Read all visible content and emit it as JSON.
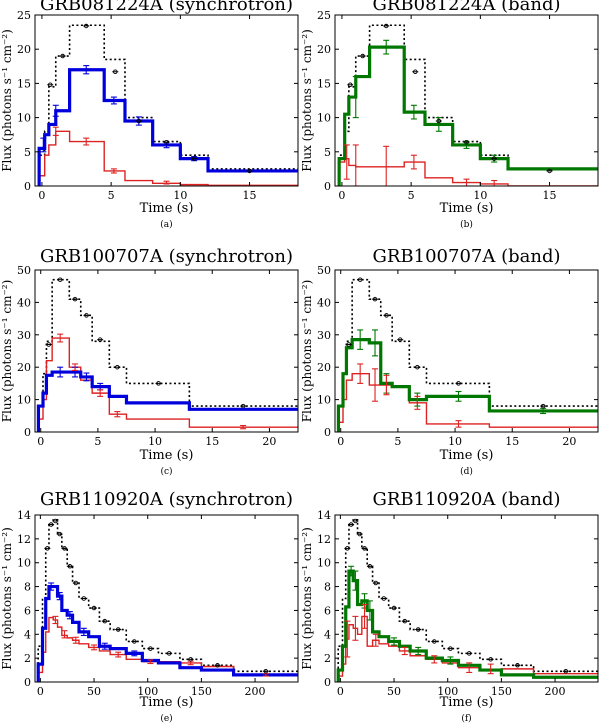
{
  "colors": {
    "data": "#000000",
    "total": "#0000dd",
    "band": "#007700",
    "extra": "#dd2222"
  },
  "chart_data": [
    {
      "type": "line",
      "label": "(a)",
      "title": "GRB081224A (synchrotron)",
      "xlabel": "Time (s)",
      "ylabel": "Flux (photons s⁻¹ cm⁻²)",
      "xlim": [
        -0.5,
        18.5
      ],
      "ylim": [
        0,
        25
      ],
      "xticks": [
        0,
        5,
        10,
        15
      ],
      "yticks": [
        0,
        5,
        10,
        15,
        20,
        25
      ],
      "xtick_labels": [
        "0",
        "5",
        "10",
        "15"
      ],
      "ytick_labels": [
        "0",
        "5",
        "10",
        "15",
        "20",
        "25"
      ],
      "edges": [
        -0.2,
        0.2,
        0.5,
        1.0,
        2.0,
        4.5,
        6.0,
        8.0,
        10.0,
        12.0,
        18.5
      ],
      "data_line": [
        4.5,
        8.0,
        14.5,
        19.0,
        23.5,
        18.5,
        10.0,
        6.5,
        4.5,
        2.5
      ],
      "total": [
        5.5,
        7.5,
        9.0,
        11.0,
        17.0,
        12.5,
        9.5,
        6.0,
        4.0,
        2.2
      ],
      "component": [
        1.5,
        4.5,
        6.0,
        8.0,
        6.5,
        2.2,
        0.8,
        0.4,
        0.2,
        0.1
      ],
      "data_points": {
        "x": [
          0.6,
          1.5,
          3.2,
          5.3,
          7.0,
          9.0,
          11.0,
          15.0
        ],
        "y": [
          14.8,
          19.0,
          23.4,
          16.7,
          9.5,
          6.4,
          4.0,
          2.2
        ]
      },
      "total_err": [
        {
          "x": 0.1,
          "y": 6.0,
          "e": 1.0
        },
        {
          "x": 1.0,
          "y": 11.0,
          "e": 0.8
        },
        {
          "x": 3.2,
          "y": 17.0,
          "e": 0.6
        },
        {
          "x": 5.2,
          "y": 12.5,
          "e": 0.5
        },
        {
          "x": 7.0,
          "y": 9.5,
          "e": 0.6
        },
        {
          "x": 9.0,
          "y": 6.0,
          "e": 0.4
        },
        {
          "x": 11.0,
          "y": 4.0,
          "e": 0.3
        }
      ],
      "comp_err": [
        {
          "x": 1.0,
          "y": 8.0,
          "e": 0.6
        },
        {
          "x": 3.2,
          "y": 6.5,
          "e": 0.5
        },
        {
          "x": 5.2,
          "y": 2.2,
          "e": 0.3
        },
        {
          "x": 9.0,
          "y": 0.5,
          "e": 0.2
        }
      ]
    },
    {
      "type": "line",
      "label": "(b)",
      "title": "GRB081224A (band)",
      "xlabel": "Time (s)",
      "ylabel": "Flux (photons s⁻¹ cm⁻²)",
      "xlim": [
        -0.5,
        18.5
      ],
      "ylim": [
        0,
        25
      ],
      "xticks": [
        0,
        5,
        10,
        15
      ],
      "yticks": [
        0,
        5,
        10,
        15,
        20,
        25
      ],
      "xtick_labels": [
        "0",
        "5",
        "10",
        "15"
      ],
      "ytick_labels": [
        "0",
        "5",
        "10",
        "15",
        "20",
        "25"
      ],
      "edges": [
        -0.2,
        0.2,
        0.5,
        1.0,
        2.0,
        4.5,
        6.0,
        8.0,
        10.0,
        12.0,
        18.5
      ],
      "data_line": [
        4.5,
        8.0,
        14.5,
        19.0,
        23.5,
        18.5,
        10.0,
        6.5,
        4.5,
        2.5
      ],
      "total": [
        4.0,
        10.5,
        13.0,
        16.0,
        20.3,
        10.8,
        9.0,
        6.0,
        4.0,
        2.5
      ],
      "component": [
        3.5,
        4.0,
        3.0,
        2.8,
        2.8,
        3.5,
        1.2,
        0.5,
        0.3,
        0.0
      ],
      "data_points": {
        "x": [
          0.6,
          1.5,
          3.2,
          5.3,
          7.0,
          9.0,
          11.0,
          15.0
        ],
        "y": [
          14.8,
          19.0,
          23.4,
          16.7,
          9.5,
          6.4,
          4.0,
          2.2
        ]
      },
      "total_err": [
        {
          "x": 1.0,
          "y": 13.0,
          "e": 3.0
        },
        {
          "x": 3.2,
          "y": 20.3,
          "e": 1.0
        },
        {
          "x": 5.2,
          "y": 10.8,
          "e": 1.0
        },
        {
          "x": 7.0,
          "y": 9.0,
          "e": 1.0
        },
        {
          "x": 9.0,
          "y": 6.0,
          "e": 0.5
        },
        {
          "x": 11.0,
          "y": 4.0,
          "e": 0.5
        }
      ],
      "comp_err": [
        {
          "x": 0.35,
          "y": 3.5,
          "e": 2.5
        },
        {
          "x": 1.0,
          "y": 3.0,
          "e": 3.0
        },
        {
          "x": 3.2,
          "y": 2.8,
          "e": 3.0
        },
        {
          "x": 5.2,
          "y": 3.5,
          "e": 1.0
        },
        {
          "x": 9.0,
          "y": 0.5,
          "e": 0.5
        },
        {
          "x": 11.0,
          "y": 0.3,
          "e": 0.5
        }
      ]
    },
    {
      "type": "line",
      "label": "(c)",
      "title": "GRB100707A (synchrotron)",
      "xlabel": "Time (s)",
      "ylabel": "Flux (photons s⁻¹ cm⁻²)",
      "xlim": [
        -0.5,
        22.5
      ],
      "ylim": [
        0,
        50
      ],
      "xticks": [
        0,
        5,
        10,
        15,
        20
      ],
      "yticks": [
        0,
        10,
        20,
        30,
        40,
        50
      ],
      "xtick_labels": [
        "0",
        "5",
        "10",
        "15",
        "20"
      ],
      "ytick_labels": [
        "0",
        "10",
        "20",
        "30",
        "40",
        "50"
      ],
      "edges": [
        -0.2,
        0.2,
        0.5,
        1.0,
        2.5,
        3.5,
        4.5,
        6.0,
        7.5,
        13.0,
        22.5
      ],
      "data_line": [
        8.0,
        18.0,
        28.0,
        47.0,
        41.0,
        36.0,
        28.0,
        20.0,
        15.0,
        8.0
      ],
      "total": [
        8.0,
        12.0,
        17.5,
        18.5,
        18.5,
        17.0,
        14.0,
        11.0,
        9.0,
        7.0
      ],
      "component": [
        4.0,
        10.0,
        22.0,
        29.0,
        20.0,
        16.0,
        12.0,
        5.5,
        4.0,
        1.5
      ],
      "data_points": {
        "x": [
          0.7,
          1.7,
          3.0,
          4.0,
          5.2,
          6.7,
          10.3,
          17.7
        ],
        "y": [
          27.0,
          47.0,
          41.0,
          36.0,
          28.5,
          20.0,
          15.0,
          8.0
        ]
      },
      "total_err": [
        {
          "x": 1.7,
          "y": 18.5,
          "e": 1.5
        },
        {
          "x": 3.0,
          "y": 18.5,
          "e": 1.5
        },
        {
          "x": 4.0,
          "y": 17.0,
          "e": 1.2
        },
        {
          "x": 5.2,
          "y": 14.0,
          "e": 1.0
        }
      ],
      "comp_err": [
        {
          "x": 1.7,
          "y": 29.0,
          "e": 1.2
        },
        {
          "x": 3.0,
          "y": 20.0,
          "e": 1.0
        },
        {
          "x": 5.2,
          "y": 12.0,
          "e": 1.0
        },
        {
          "x": 6.7,
          "y": 5.5,
          "e": 0.8
        },
        {
          "x": 17.7,
          "y": 1.5,
          "e": 0.5
        }
      ]
    },
    {
      "type": "line",
      "label": "(d)",
      "title": "GRB100707A (band)",
      "xlabel": "Time (s)",
      "ylabel": "Flux (photons s⁻¹ cm⁻²)",
      "xlim": [
        -0.5,
        22.5
      ],
      "ylim": [
        0,
        50
      ],
      "xticks": [
        0,
        5,
        10,
        15,
        20
      ],
      "yticks": [
        0,
        10,
        20,
        30,
        40,
        50
      ],
      "xtick_labels": [
        "0",
        "5",
        "10",
        "15",
        "20"
      ],
      "ytick_labels": [
        "0",
        "10",
        "20",
        "30",
        "40",
        "50"
      ],
      "edges": [
        -0.2,
        0.2,
        0.5,
        1.0,
        2.5,
        3.5,
        4.5,
        6.0,
        7.5,
        13.0,
        22.5
      ],
      "data_line": [
        8.0,
        18.0,
        28.0,
        47.0,
        41.0,
        36.0,
        28.0,
        20.0,
        15.0,
        8.0
      ],
      "total": [
        8.0,
        18.0,
        26.0,
        28.5,
        27.5,
        15.0,
        14.0,
        10.0,
        11.0,
        6.5
      ],
      "component": [
        3.0,
        10.0,
        16.0,
        18.0,
        14.5,
        14.5,
        14.0,
        9.0,
        2.5,
        1.5
      ],
      "data_points": {
        "x": [
          0.7,
          1.7,
          3.0,
          4.0,
          5.2,
          6.7,
          10.3,
          17.7
        ],
        "y": [
          27.0,
          47.0,
          41.0,
          36.0,
          28.5,
          20.0,
          15.0,
          8.0
        ]
      },
      "total_err": [
        {
          "x": 1.7,
          "y": 28.5,
          "e": 3.0
        },
        {
          "x": 3.0,
          "y": 27.5,
          "e": 4.0
        },
        {
          "x": 4.0,
          "y": 15.0,
          "e": 3.0
        },
        {
          "x": 6.7,
          "y": 10.0,
          "e": 2.0
        },
        {
          "x": 10.3,
          "y": 11.0,
          "e": 1.5
        },
        {
          "x": 17.7,
          "y": 6.5,
          "e": 0.8
        }
      ],
      "comp_err": [
        {
          "x": 1.7,
          "y": 18.0,
          "e": 3.0
        },
        {
          "x": 3.0,
          "y": 14.5,
          "e": 5.0
        },
        {
          "x": 4.0,
          "y": 14.5,
          "e": 3.0
        },
        {
          "x": 6.7,
          "y": 9.0,
          "e": 2.0
        },
        {
          "x": 10.3,
          "y": 2.5,
          "e": 1.0
        }
      ]
    },
    {
      "type": "line",
      "label": "(e)",
      "title": "GRB110920A (synchrotron)",
      "xlabel": "Time (s)",
      "ylabel": "Flux (photons s⁻¹ cm⁻²)",
      "xlim": [
        -5,
        240
      ],
      "ylim": [
        0,
        14
      ],
      "xticks": [
        0,
        50,
        100,
        150,
        200
      ],
      "yticks": [
        0,
        2,
        4,
        6,
        8,
        10,
        12,
        14
      ],
      "xtick_labels": [
        "0",
        "50",
        "100",
        "150",
        "200"
      ],
      "ytick_labels": [
        "0",
        "2",
        "4",
        "6",
        "8",
        "10",
        "12",
        "14"
      ],
      "edges": [
        -2,
        2,
        5,
        8,
        12,
        16,
        20,
        25,
        30,
        36,
        45,
        55,
        65,
        80,
        95,
        110,
        130,
        150,
        180,
        240
      ],
      "data_line": [
        3.0,
        7.0,
        11.2,
        13.2,
        13.6,
        12.4,
        11.2,
        9.7,
        8.3,
        7.0,
        6.2,
        5.1,
        4.4,
        3.4,
        2.8,
        2.4,
        1.9,
        1.4,
        0.9
      ],
      "total": [
        1.5,
        4.5,
        7.0,
        8.0,
        8.0,
        7.2,
        6.0,
        5.6,
        5.0,
        4.2,
        3.8,
        3.0,
        2.8,
        2.4,
        1.8,
        1.6,
        1.2,
        1.0,
        0.6
      ],
      "component": [
        0.8,
        2.5,
        4.2,
        5.4,
        5.2,
        4.6,
        3.9,
        3.7,
        3.5,
        3.2,
        2.9,
        2.6,
        2.3,
        1.9,
        1.7,
        1.7,
        1.6,
        1.3,
        0.6
      ],
      "data_points": {
        "x": [
          6.5,
          10,
          14,
          18,
          22.5,
          27.5,
          33,
          40.5,
          50,
          60,
          72.5,
          87.5,
          102.5,
          120,
          140,
          165,
          210
        ],
        "y": [
          11.2,
          13.2,
          13.5,
          12.4,
          11.2,
          9.7,
          8.3,
          7.0,
          6.2,
          5.1,
          4.4,
          3.4,
          2.8,
          2.4,
          1.9,
          1.4,
          0.9
        ]
      },
      "total_err": [
        {
          "x": 10,
          "y": 8.0,
          "e": 0.3
        },
        {
          "x": 18,
          "y": 7.2,
          "e": 0.3
        },
        {
          "x": 27.5,
          "y": 5.6,
          "e": 0.3
        },
        {
          "x": 40.5,
          "y": 4.2,
          "e": 0.3
        },
        {
          "x": 60,
          "y": 3.0,
          "e": 0.25
        },
        {
          "x": 87.5,
          "y": 2.4,
          "e": 0.2
        }
      ],
      "comp_err": [
        {
          "x": 14,
          "y": 5.2,
          "e": 0.3
        },
        {
          "x": 22.5,
          "y": 4.0,
          "e": 0.3
        },
        {
          "x": 33,
          "y": 3.5,
          "e": 0.25
        },
        {
          "x": 50,
          "y": 2.9,
          "e": 0.2
        },
        {
          "x": 72.5,
          "y": 2.3,
          "e": 0.2
        },
        {
          "x": 102.5,
          "y": 1.7,
          "e": 0.15
        },
        {
          "x": 140,
          "y": 1.6,
          "e": 0.15
        },
        {
          "x": 210,
          "y": 0.6,
          "e": 0.1
        }
      ]
    },
    {
      "type": "line",
      "label": "(f)",
      "title": "GRB110920A (band)",
      "xlabel": "Time (s)",
      "ylabel": "Flux (photons s⁻¹ cm⁻²)",
      "xlim": [
        -5,
        240
      ],
      "ylim": [
        0,
        14
      ],
      "xticks": [
        0,
        50,
        100,
        150,
        200
      ],
      "yticks": [
        0,
        2,
        4,
        6,
        8,
        10,
        12,
        14
      ],
      "xtick_labels": [
        "0",
        "50",
        "100",
        "150",
        "200"
      ],
      "ytick_labels": [
        "0",
        "2",
        "4",
        "6",
        "8",
        "10",
        "12",
        "14"
      ],
      "edges": [
        -2,
        2,
        5,
        8,
        12,
        16,
        20,
        25,
        30,
        36,
        45,
        55,
        65,
        80,
        95,
        110,
        130,
        150,
        180,
        240
      ],
      "data_line": [
        3.0,
        7.0,
        11.2,
        13.2,
        13.6,
        12.4,
        11.2,
        9.7,
        8.3,
        7.0,
        6.2,
        5.1,
        4.4,
        3.4,
        2.8,
        2.4,
        1.9,
        1.4,
        0.9
      ],
      "total": [
        1.0,
        3.0,
        6.3,
        9.3,
        8.5,
        6.5,
        6.8,
        6.0,
        4.2,
        3.8,
        3.4,
        3.0,
        2.6,
        2.0,
        1.8,
        1.4,
        1.0,
        0.6,
        0.4
      ],
      "component": [
        0.5,
        1.5,
        3.6,
        4.8,
        4.5,
        4.0,
        5.5,
        3.0,
        3.5,
        3.2,
        3.0,
        2.6,
        2.2,
        1.9,
        1.6,
        1.2,
        1.0,
        1.1,
        0.7
      ],
      "data_points": {
        "x": [
          6.5,
          10,
          14,
          18,
          22.5,
          27.5,
          33,
          40.5,
          50,
          60,
          72.5,
          87.5,
          102.5,
          120,
          140,
          165,
          210
        ],
        "y": [
          11.2,
          13.2,
          13.5,
          12.4,
          11.2,
          9.7,
          8.3,
          7.0,
          6.2,
          5.1,
          4.4,
          3.4,
          2.8,
          2.4,
          1.9,
          1.4,
          0.9
        ]
      },
      "total_err": [
        {
          "x": 10,
          "y": 9.3,
          "e": 0.4
        },
        {
          "x": 14,
          "y": 8.5,
          "e": 0.8
        },
        {
          "x": 22.5,
          "y": 6.8,
          "e": 0.6
        },
        {
          "x": 27.5,
          "y": 6.0,
          "e": 0.8
        },
        {
          "x": 50,
          "y": 3.4,
          "e": 0.3
        },
        {
          "x": 72.5,
          "y": 2.6,
          "e": 0.3
        },
        {
          "x": 102.5,
          "y": 1.8,
          "e": 0.3
        }
      ],
      "comp_err": [
        {
          "x": 6.5,
          "y": 3.6,
          "e": 1.5
        },
        {
          "x": 14,
          "y": 4.5,
          "e": 1.0
        },
        {
          "x": 22.5,
          "y": 5.5,
          "e": 1.0
        },
        {
          "x": 33,
          "y": 3.5,
          "e": 0.5
        },
        {
          "x": 60,
          "y": 2.6,
          "e": 0.3
        },
        {
          "x": 87.5,
          "y": 1.9,
          "e": 0.3
        },
        {
          "x": 120,
          "y": 1.2,
          "e": 0.4
        },
        {
          "x": 140,
          "y": 1.1,
          "e": 0.4
        }
      ]
    }
  ]
}
